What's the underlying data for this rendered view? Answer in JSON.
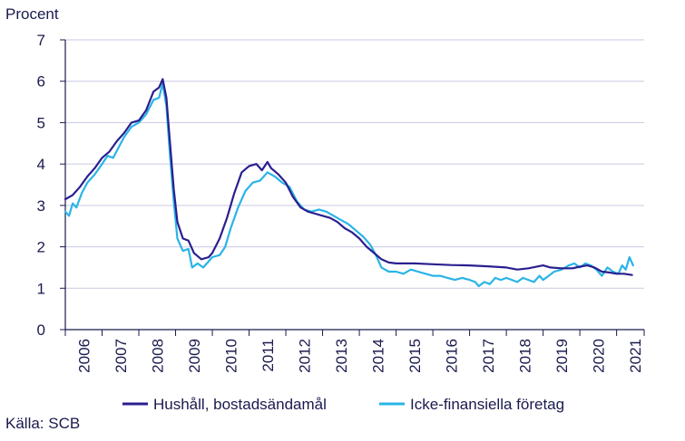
{
  "chart_data": {
    "type": "line",
    "ylabel": "Procent",
    "ylim": [
      0,
      7
    ],
    "yticks": [
      0,
      1,
      2,
      3,
      4,
      5,
      6,
      7
    ],
    "xlim": [
      2006,
      2021.75
    ],
    "years": [
      "2006",
      "2007",
      "2008",
      "2009",
      "2010",
      "2011",
      "2012",
      "2013",
      "2014",
      "2015",
      "2016",
      "2017",
      "2018",
      "2019",
      "2020",
      "2021"
    ],
    "grid": true,
    "legend_position": "bottom",
    "series": [
      {
        "name": "Hushåll, bostadsändamål",
        "color": "#2a1f8f",
        "points": [
          [
            2006.0,
            3.15
          ],
          [
            2006.2,
            3.25
          ],
          [
            2006.4,
            3.45
          ],
          [
            2006.6,
            3.7
          ],
          [
            2006.8,
            3.9
          ],
          [
            2007.0,
            4.15
          ],
          [
            2007.2,
            4.3
          ],
          [
            2007.4,
            4.55
          ],
          [
            2007.6,
            4.75
          ],
          [
            2007.8,
            5.0
          ],
          [
            2008.0,
            5.05
          ],
          [
            2008.2,
            5.3
          ],
          [
            2008.4,
            5.75
          ],
          [
            2008.55,
            5.85
          ],
          [
            2008.65,
            6.05
          ],
          [
            2008.75,
            5.6
          ],
          [
            2008.85,
            4.5
          ],
          [
            2008.95,
            3.4
          ],
          [
            2009.05,
            2.6
          ],
          [
            2009.2,
            2.2
          ],
          [
            2009.35,
            2.15
          ],
          [
            2009.5,
            1.85
          ],
          [
            2009.7,
            1.7
          ],
          [
            2009.9,
            1.75
          ],
          [
            2010.0,
            1.85
          ],
          [
            2010.2,
            2.2
          ],
          [
            2010.4,
            2.7
          ],
          [
            2010.6,
            3.3
          ],
          [
            2010.8,
            3.8
          ],
          [
            2011.0,
            3.95
          ],
          [
            2011.2,
            4.0
          ],
          [
            2011.35,
            3.85
          ],
          [
            2011.5,
            4.05
          ],
          [
            2011.6,
            3.9
          ],
          [
            2011.8,
            3.75
          ],
          [
            2012.0,
            3.55
          ],
          [
            2012.2,
            3.2
          ],
          [
            2012.4,
            2.95
          ],
          [
            2012.6,
            2.85
          ],
          [
            2012.8,
            2.8
          ],
          [
            2013.0,
            2.75
          ],
          [
            2013.2,
            2.7
          ],
          [
            2013.4,
            2.6
          ],
          [
            2013.6,
            2.45
          ],
          [
            2013.8,
            2.35
          ],
          [
            2014.0,
            2.2
          ],
          [
            2014.2,
            2.0
          ],
          [
            2014.4,
            1.85
          ],
          [
            2014.6,
            1.7
          ],
          [
            2014.8,
            1.62
          ],
          [
            2015.0,
            1.6
          ],
          [
            2015.5,
            1.6
          ],
          [
            2016.0,
            1.58
          ],
          [
            2016.5,
            1.56
          ],
          [
            2017.0,
            1.55
          ],
          [
            2017.5,
            1.53
          ],
          [
            2018.0,
            1.5
          ],
          [
            2018.3,
            1.45
          ],
          [
            2018.6,
            1.48
          ],
          [
            2019.0,
            1.55
          ],
          [
            2019.2,
            1.5
          ],
          [
            2019.5,
            1.48
          ],
          [
            2019.8,
            1.48
          ],
          [
            2020.0,
            1.52
          ],
          [
            2020.2,
            1.55
          ],
          [
            2020.4,
            1.5
          ],
          [
            2020.6,
            1.4
          ],
          [
            2020.8,
            1.38
          ],
          [
            2021.0,
            1.35
          ],
          [
            2021.2,
            1.35
          ],
          [
            2021.42,
            1.32
          ]
        ]
      },
      {
        "name": "Icke-finansiella företag",
        "color": "#29b4e6",
        "points": [
          [
            2006.0,
            2.85
          ],
          [
            2006.1,
            2.75
          ],
          [
            2006.2,
            3.05
          ],
          [
            2006.3,
            2.95
          ],
          [
            2006.45,
            3.3
          ],
          [
            2006.6,
            3.55
          ],
          [
            2006.8,
            3.75
          ],
          [
            2007.0,
            4.0
          ],
          [
            2007.15,
            4.2
          ],
          [
            2007.3,
            4.15
          ],
          [
            2007.45,
            4.4
          ],
          [
            2007.6,
            4.65
          ],
          [
            2007.8,
            4.9
          ],
          [
            2008.0,
            5.0
          ],
          [
            2008.2,
            5.2
          ],
          [
            2008.4,
            5.55
          ],
          [
            2008.55,
            5.6
          ],
          [
            2008.65,
            5.95
          ],
          [
            2008.75,
            5.4
          ],
          [
            2008.85,
            4.2
          ],
          [
            2008.95,
            3.1
          ],
          [
            2009.05,
            2.2
          ],
          [
            2009.2,
            1.9
          ],
          [
            2009.35,
            1.95
          ],
          [
            2009.45,
            1.5
          ],
          [
            2009.6,
            1.6
          ],
          [
            2009.75,
            1.5
          ],
          [
            2009.9,
            1.65
          ],
          [
            2010.0,
            1.75
          ],
          [
            2010.2,
            1.8
          ],
          [
            2010.35,
            2.0
          ],
          [
            2010.5,
            2.45
          ],
          [
            2010.7,
            2.95
          ],
          [
            2010.9,
            3.35
          ],
          [
            2011.1,
            3.55
          ],
          [
            2011.3,
            3.6
          ],
          [
            2011.5,
            3.8
          ],
          [
            2011.7,
            3.7
          ],
          [
            2011.9,
            3.55
          ],
          [
            2012.1,
            3.45
          ],
          [
            2012.3,
            3.1
          ],
          [
            2012.5,
            2.9
          ],
          [
            2012.7,
            2.85
          ],
          [
            2012.9,
            2.9
          ],
          [
            2013.1,
            2.85
          ],
          [
            2013.3,
            2.75
          ],
          [
            2013.5,
            2.65
          ],
          [
            2013.7,
            2.55
          ],
          [
            2013.9,
            2.4
          ],
          [
            2014.1,
            2.25
          ],
          [
            2014.3,
            2.05
          ],
          [
            2014.45,
            1.8
          ],
          [
            2014.6,
            1.5
          ],
          [
            2014.8,
            1.4
          ],
          [
            2015.0,
            1.4
          ],
          [
            2015.2,
            1.35
          ],
          [
            2015.4,
            1.45
          ],
          [
            2015.6,
            1.4
          ],
          [
            2015.8,
            1.35
          ],
          [
            2016.0,
            1.3
          ],
          [
            2016.2,
            1.3
          ],
          [
            2016.4,
            1.25
          ],
          [
            2016.6,
            1.2
          ],
          [
            2016.8,
            1.25
          ],
          [
            2017.0,
            1.2
          ],
          [
            2017.15,
            1.15
          ],
          [
            2017.25,
            1.05
          ],
          [
            2017.4,
            1.15
          ],
          [
            2017.55,
            1.1
          ],
          [
            2017.7,
            1.25
          ],
          [
            2017.85,
            1.2
          ],
          [
            2018.0,
            1.25
          ],
          [
            2018.15,
            1.2
          ],
          [
            2018.3,
            1.15
          ],
          [
            2018.45,
            1.25
          ],
          [
            2018.6,
            1.2
          ],
          [
            2018.75,
            1.15
          ],
          [
            2018.9,
            1.3
          ],
          [
            2019.0,
            1.2
          ],
          [
            2019.15,
            1.3
          ],
          [
            2019.3,
            1.4
          ],
          [
            2019.5,
            1.45
          ],
          [
            2019.7,
            1.55
          ],
          [
            2019.85,
            1.6
          ],
          [
            2020.0,
            1.5
          ],
          [
            2020.15,
            1.6
          ],
          [
            2020.3,
            1.55
          ],
          [
            2020.45,
            1.45
          ],
          [
            2020.6,
            1.3
          ],
          [
            2020.75,
            1.5
          ],
          [
            2020.9,
            1.4
          ],
          [
            2021.05,
            1.35
          ],
          [
            2021.15,
            1.55
          ],
          [
            2021.25,
            1.45
          ],
          [
            2021.35,
            1.75
          ],
          [
            2021.45,
            1.55
          ]
        ]
      }
    ]
  },
  "source": "Källa: SCB"
}
